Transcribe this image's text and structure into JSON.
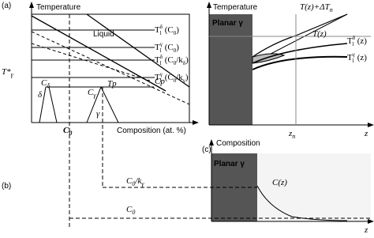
{
  "panel_a": {
    "label": "(a)",
    "left_axis": "Temperature",
    "left_x_axis": "Composition (at. %)",
    "liquid": "Liquid",
    "t_star": [
      "T*",
      "γ"
    ],
    "delta": "δ",
    "c_delta": [
      "C",
      "δ"
    ],
    "c_gamma": [
      "C",
      "γ"
    ],
    "tp": "Tp",
    "cp": "Cp",
    "gamma": "γ",
    "c0": [
      "C",
      "0"
    ],
    "liquidus": [
      {
        "base": "T",
        "sub": "l",
        "sup": "δ",
        "arg": [
          "(C",
          "0",
          ")"
        ]
      },
      {
        "base": "T",
        "sub": "l",
        "sup": "γ",
        "arg": [
          "(C",
          "0",
          ")"
        ]
      },
      {
        "base": "T",
        "sub": "l",
        "sup": "δ",
        "arg": [
          "(C",
          "0",
          "/k",
          "δ",
          ")"
        ]
      },
      {
        "base": "T",
        "sub": "l",
        "sup": "γ",
        "arg": [
          "(C",
          "0",
          "/k",
          "γ",
          ")"
        ]
      }
    ],
    "right_axis": "Temperature",
    "planar": "Planar γ",
    "t_dtn": [
      "T(z)+ΔT",
      "n"
    ],
    "tz": "T(z)",
    "tl_delta_z": {
      "base": "T",
      "sub": "l",
      "sup": "δ",
      "arg": [
        "(z)"
      ]
    },
    "tl_gamma_z": {
      "base": "T",
      "sub": "l",
      "sup": "γ",
      "arg": [
        "(z)"
      ]
    },
    "zn": [
      "z",
      "n"
    ],
    "z": "z"
  },
  "panel_c": {
    "label": "(c)",
    "axis": "Composition",
    "planar": "Planar γ",
    "cz": "C(z)",
    "z": "z"
  },
  "panel_b": {
    "label": "(b)",
    "c0_k": [
      "C",
      "0",
      "/k",
      "γ"
    ],
    "c0": [
      "C",
      "0"
    ]
  }
}
